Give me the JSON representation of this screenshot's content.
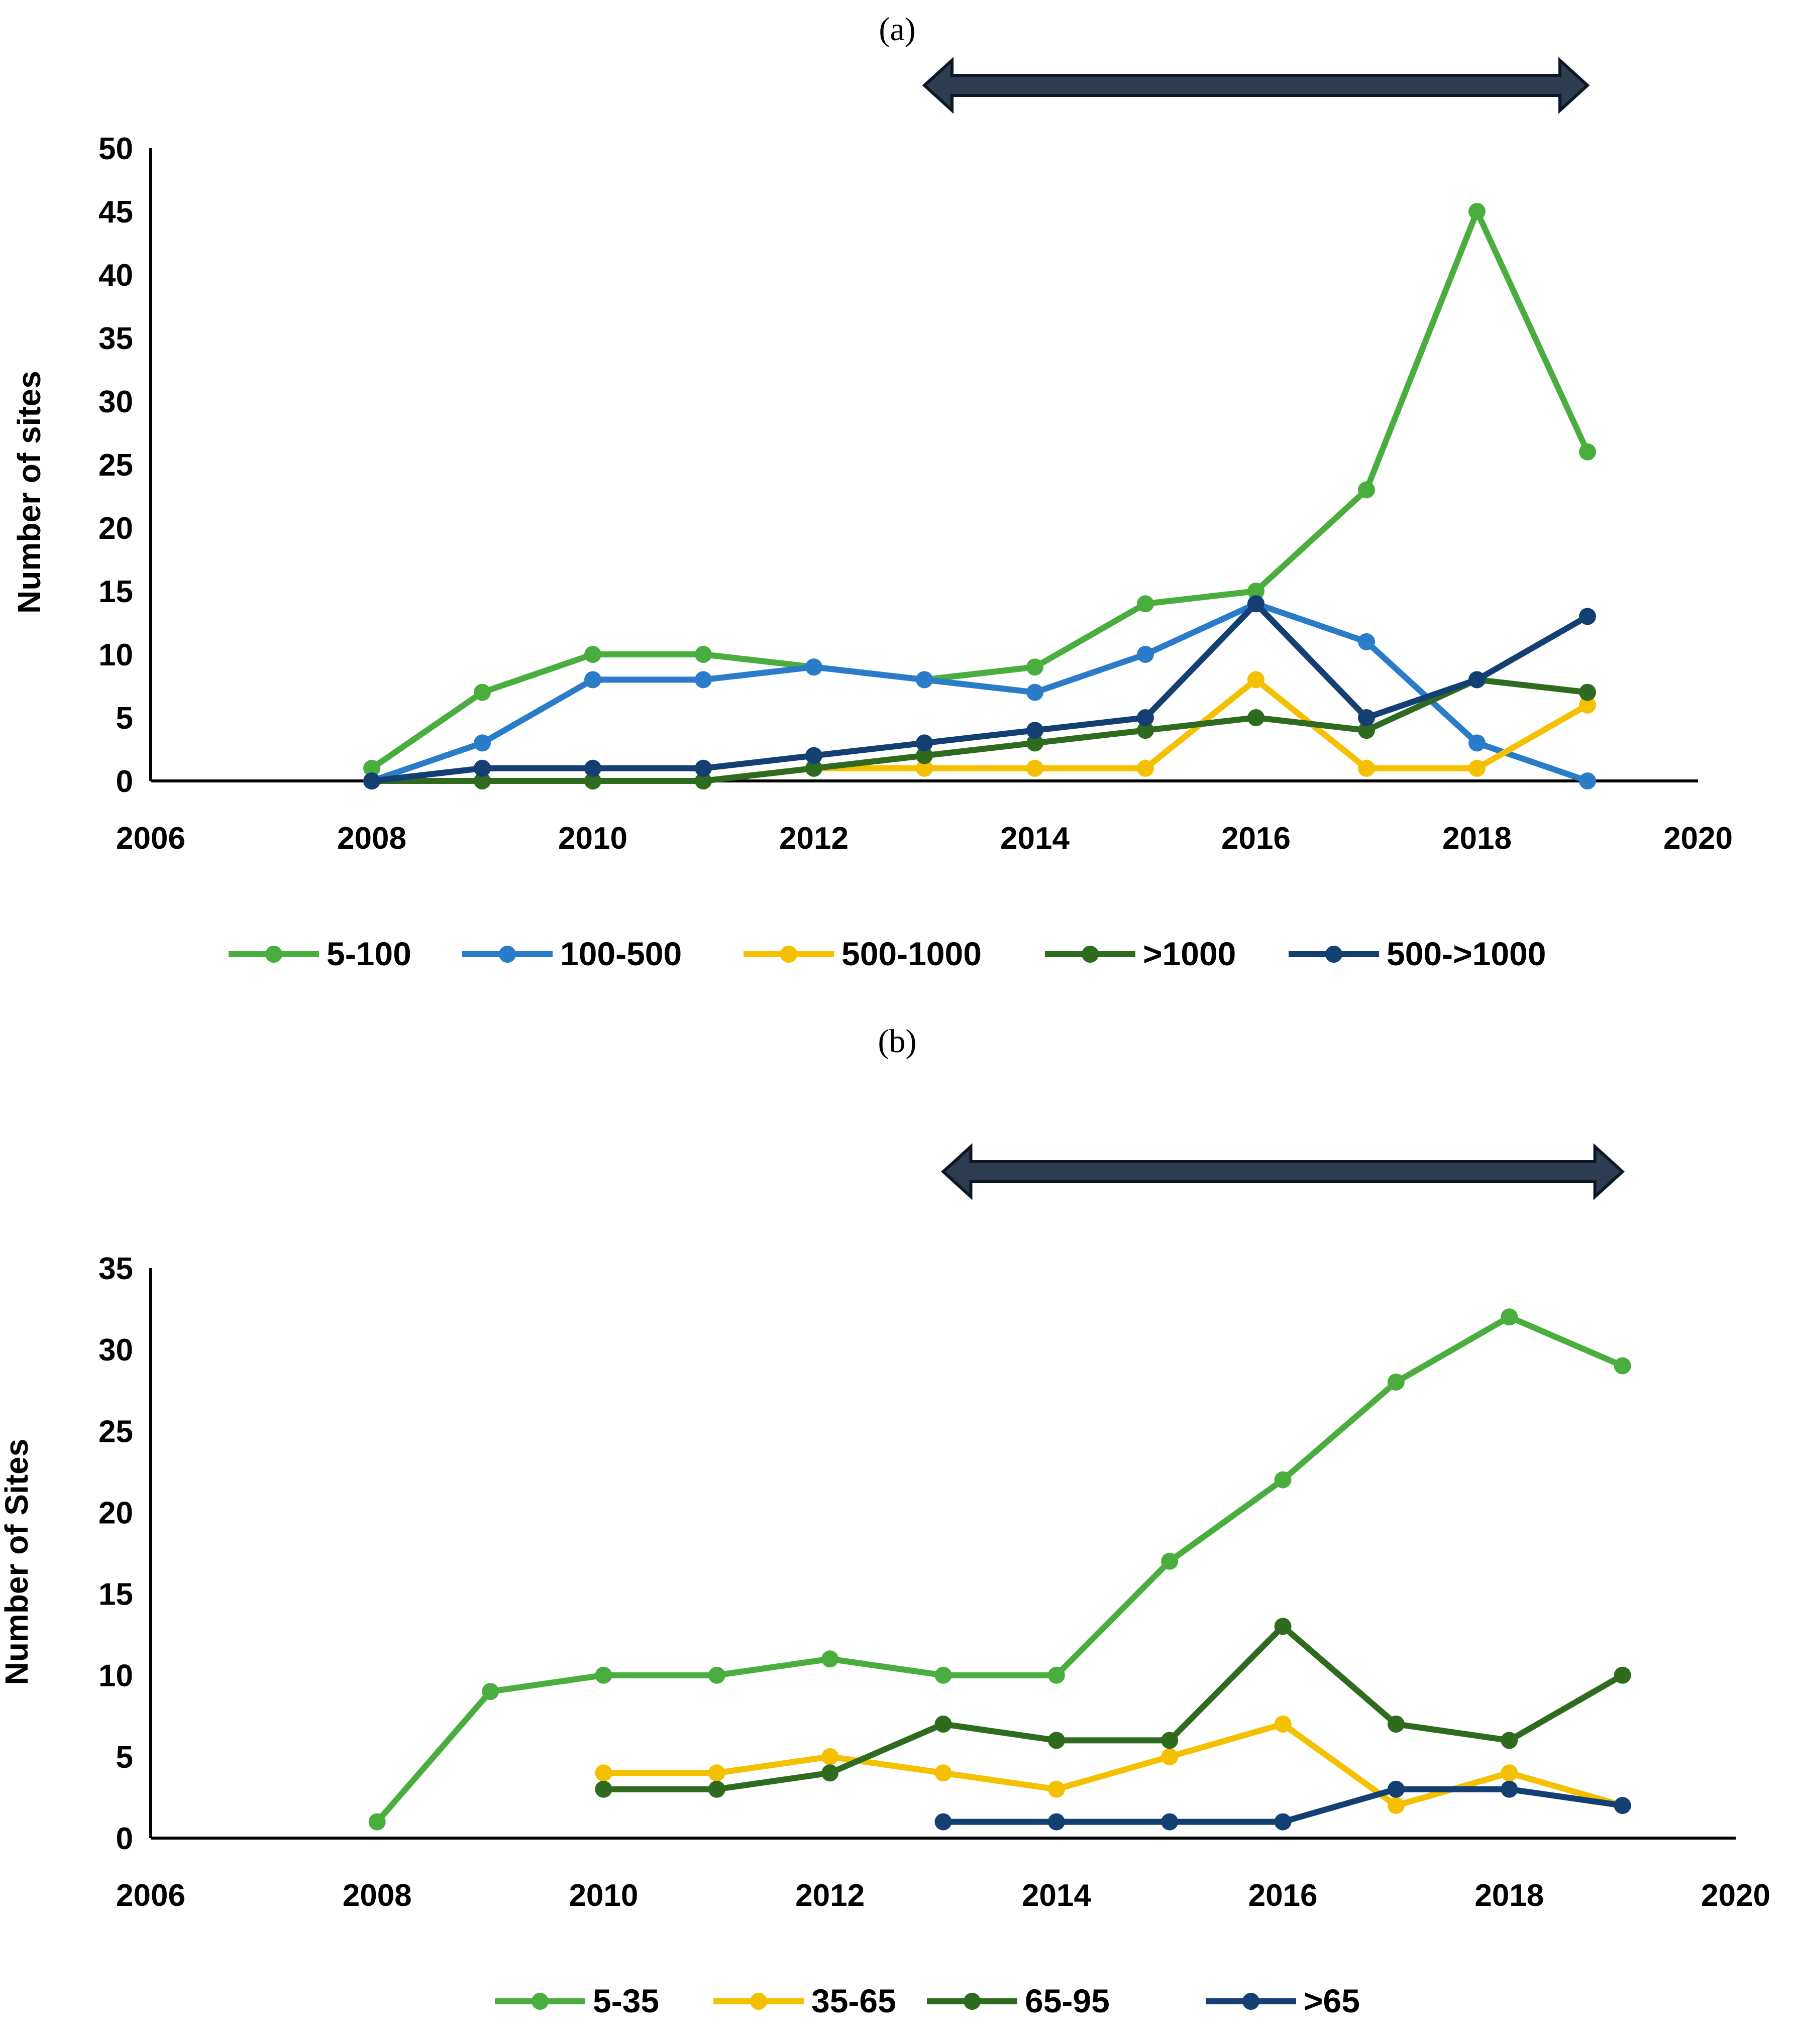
{
  "chart_data": [
    {
      "type": "line",
      "panel_label": "(a)",
      "ylabel": "Number of sites",
      "xlim": [
        2006,
        2020
      ],
      "ylim": [
        0,
        50
      ],
      "x_ticks": [
        2006,
        2008,
        2010,
        2012,
        2014,
        2016,
        2018,
        2020
      ],
      "y_ticks": [
        0,
        5,
        10,
        15,
        20,
        25,
        30,
        35,
        40,
        45,
        50
      ],
      "annotation": {
        "type": "double-arrow",
        "from": 2013,
        "to": 2019,
        "color": "#2d3c4f"
      },
      "legend_position": "bottom",
      "series": [
        {
          "name": "5-100",
          "color": "#4aae3f",
          "points": [
            [
              2008,
              1
            ],
            [
              2009,
              7
            ],
            [
              2010,
              10
            ],
            [
              2011,
              10
            ],
            [
              2012,
              9
            ],
            [
              2013,
              8
            ],
            [
              2014,
              9
            ],
            [
              2015,
              14
            ],
            [
              2016,
              15
            ],
            [
              2017,
              23
            ],
            [
              2018,
              45
            ],
            [
              2019,
              26
            ]
          ]
        },
        {
          "name": "100-500",
          "color": "#2a7cc9",
          "points": [
            [
              2008,
              0
            ],
            [
              2009,
              3
            ],
            [
              2010,
              8
            ],
            [
              2011,
              8
            ],
            [
              2012,
              9
            ],
            [
              2013,
              8
            ],
            [
              2014,
              7
            ],
            [
              2015,
              10
            ],
            [
              2016,
              14
            ],
            [
              2017,
              11
            ],
            [
              2018,
              3
            ],
            [
              2019,
              0
            ]
          ]
        },
        {
          "name": "500-1000",
          "color": "#f5c000",
          "points": [
            [
              2008,
              0
            ],
            [
              2009,
              0
            ],
            [
              2010,
              0
            ],
            [
              2011,
              0
            ],
            [
              2012,
              1
            ],
            [
              2013,
              1
            ],
            [
              2014,
              1
            ],
            [
              2015,
              1
            ],
            [
              2016,
              8
            ],
            [
              2017,
              1
            ],
            [
              2018,
              1
            ],
            [
              2019,
              6
            ]
          ]
        },
        {
          "name": ">1000",
          "color": "#2e6b1f",
          "points": [
            [
              2008,
              0
            ],
            [
              2009,
              0
            ],
            [
              2010,
              0
            ],
            [
              2011,
              0
            ],
            [
              2012,
              1
            ],
            [
              2013,
              2
            ],
            [
              2014,
              3
            ],
            [
              2015,
              4
            ],
            [
              2016,
              5
            ],
            [
              2017,
              4
            ],
            [
              2018,
              8
            ],
            [
              2019,
              7
            ]
          ]
        },
        {
          "name": "500->1000",
          "color": "#143f73",
          "points": [
            [
              2008,
              0
            ],
            [
              2009,
              1
            ],
            [
              2010,
              1
            ],
            [
              2011,
              1
            ],
            [
              2012,
              2
            ],
            [
              2013,
              3
            ],
            [
              2014,
              4
            ],
            [
              2015,
              5
            ],
            [
              2016,
              14
            ],
            [
              2017,
              5
            ],
            [
              2018,
              8
            ],
            [
              2019,
              13
            ]
          ]
        }
      ]
    },
    {
      "type": "line",
      "panel_label": "(b)",
      "ylabel": "Number of Sites",
      "xlim": [
        2006,
        2020
      ],
      "ylim": [
        0,
        35
      ],
      "x_ticks": [
        2006,
        2008,
        2010,
        2012,
        2014,
        2016,
        2018,
        2020
      ],
      "y_ticks": [
        0,
        5,
        10,
        15,
        20,
        25,
        30,
        35
      ],
      "annotation": {
        "type": "double-arrow",
        "from": 2013,
        "to": 2019,
        "color": "#2d3c4f"
      },
      "legend_position": "bottom",
      "series": [
        {
          "name": "5-35",
          "color": "#4aae3f",
          "points": [
            [
              2008,
              1
            ],
            [
              2009,
              9
            ],
            [
              2010,
              10
            ],
            [
              2011,
              10
            ],
            [
              2012,
              11
            ],
            [
              2013,
              10
            ],
            [
              2014,
              10
            ],
            [
              2015,
              17
            ],
            [
              2016,
              22
            ],
            [
              2017,
              28
            ],
            [
              2018,
              32
            ],
            [
              2019,
              29
            ]
          ]
        },
        {
          "name": "35-65",
          "color": "#f5c000",
          "points": [
            [
              2010,
              4
            ],
            [
              2011,
              4
            ],
            [
              2012,
              5
            ],
            [
              2013,
              4
            ],
            [
              2014,
              3
            ],
            [
              2015,
              5
            ],
            [
              2016,
              7
            ],
            [
              2017,
              2
            ],
            [
              2018,
              4
            ],
            [
              2019,
              2
            ]
          ]
        },
        {
          "name": "65-95",
          "color": "#2e6b1f",
          "points": [
            [
              2010,
              3
            ],
            [
              2011,
              3
            ],
            [
              2012,
              4
            ],
            [
              2013,
              7
            ],
            [
              2014,
              6
            ],
            [
              2015,
              6
            ],
            [
              2016,
              13
            ],
            [
              2017,
              7
            ],
            [
              2018,
              6
            ],
            [
              2019,
              10
            ]
          ]
        },
        {
          "name": ">65",
          "color": "#143f73",
          "points": [
            [
              2013,
              1
            ],
            [
              2014,
              1
            ],
            [
              2015,
              1
            ],
            [
              2016,
              1
            ],
            [
              2017,
              3
            ],
            [
              2018,
              3
            ],
            [
              2019,
              2
            ]
          ]
        }
      ]
    }
  ]
}
